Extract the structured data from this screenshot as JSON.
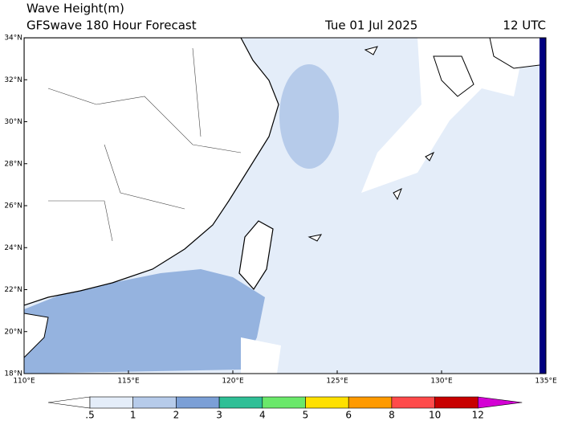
{
  "header": {
    "title": "Wave Height(m)",
    "model": "GFSwave 180 Hour Forecast",
    "date": "Tue 01 Jul 2025",
    "time": "12 UTC"
  },
  "map": {
    "lat_labels": [
      "34°N",
      "32°N",
      "30°N",
      "28°N",
      "26°N",
      "24°N",
      "22°N",
      "20°N",
      "18°N"
    ],
    "lon_labels": [
      "110°E",
      "115°E",
      "120°E",
      "125°E",
      "130°E",
      "135°E"
    ]
  },
  "colorbar": {
    "labels": [
      ".5",
      "1",
      "2",
      "3",
      "4",
      "5",
      "6",
      "8",
      "10",
      "12"
    ],
    "colors": [
      "#ffffff",
      "#e4edf9",
      "#b6cbea",
      "#7b9fd6",
      "#2fbf96",
      "#6ae86a",
      "#ffe000",
      "#ff9a00",
      "#ff4a4a",
      "#c80000",
      "#d400d4"
    ]
  }
}
